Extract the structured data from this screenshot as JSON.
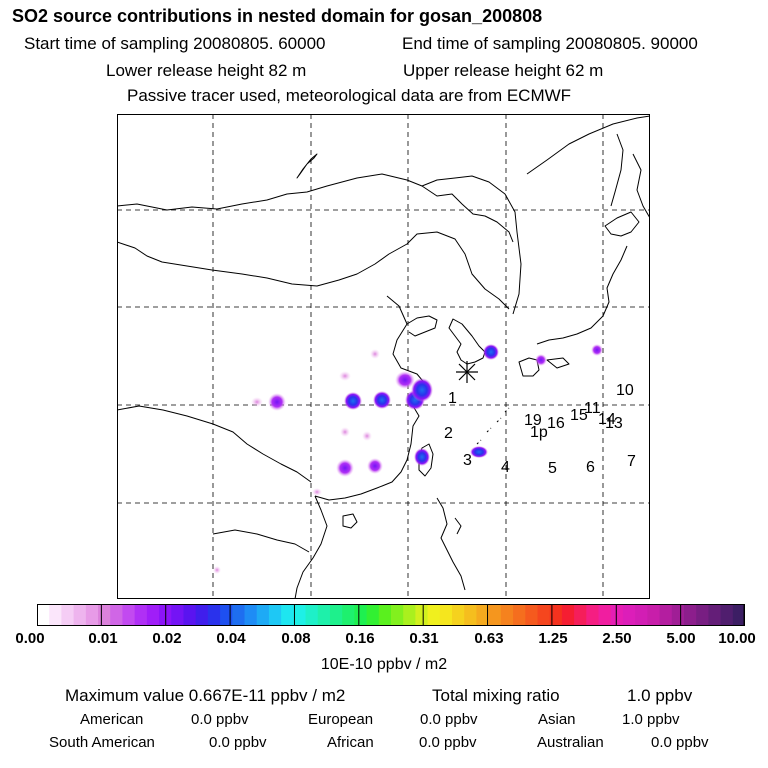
{
  "header": {
    "title": "SO2 source contributions in nested domain for gosan_200808",
    "start_time": "Start time of sampling 20080805. 60000",
    "end_time": "End time of sampling 20080805. 90000",
    "lower_release": "Lower release height   82 m",
    "upper_release": "Upper release height   62 m",
    "tracer_note": "Passive tracer used, meteorological data are from ECMWF"
  },
  "map": {
    "receptor_markers": [
      {
        "label": "1"
      },
      {
        "label": "2"
      },
      {
        "label": "3"
      },
      {
        "label": "4"
      },
      {
        "label": "5"
      },
      {
        "label": "6"
      },
      {
        "label": "7"
      },
      {
        "label": "10"
      },
      {
        "label": "11"
      },
      {
        "label": "13"
      },
      {
        "label": "14"
      },
      {
        "label": "15"
      },
      {
        "label": "16"
      },
      {
        "label": "19"
      },
      {
        "label": "1p"
      }
    ],
    "colors": {
      "coast": "#000000",
      "grid": "#000000"
    }
  },
  "colorbar": {
    "colors": [
      "#ffffff",
      "#fbe6fb",
      "#f5cdf5",
      "#eeb4ee",
      "#e79be7",
      "#dc82dc",
      "#d066e6",
      "#c24af0",
      "#b030f5",
      "#a01ef8",
      "#8c14f8",
      "#7414f5",
      "#5a14f0",
      "#401eec",
      "#2a32ec",
      "#1e50f0",
      "#1e6ef0",
      "#1e8cf5",
      "#1eaaf5",
      "#1ec8f5",
      "#1ee6f0",
      "#1ef0e6",
      "#1ef0c8",
      "#1ef0aa",
      "#1ef08c",
      "#1ef06e",
      "#1ef050",
      "#32f032",
      "#5af01e",
      "#82f01e",
      "#aaf01e",
      "#d2f01e",
      "#f0f01e",
      "#f5e61e",
      "#f5d21e",
      "#f5be1e",
      "#f5aa1e",
      "#f5961e",
      "#f5821e",
      "#f56e1e",
      "#f55a1e",
      "#f5461e",
      "#f5321e",
      "#f51e32",
      "#f51e5a",
      "#f51e82",
      "#f01ea0",
      "#e61eb4",
      "#dc1eb9",
      "#d21eb4",
      "#c81eaa",
      "#b41ea0",
      "#a01e96",
      "#8c1e8c",
      "#781e82",
      "#641e78",
      "#501e6e",
      "#3c1e64"
    ],
    "tick_labels": [
      "0.00",
      "0.01",
      "0.02",
      "0.04",
      "0.08",
      "0.16",
      "0.31",
      "0.63",
      "1.25",
      "2.50",
      "5.00",
      "10.00"
    ],
    "unit": "10E-10 ppbv / m2"
  },
  "footer": {
    "max_value": "Maximum value  0.667E-11 ppbv / m2",
    "total_mixing": "Total mixing ratio",
    "total_value": "1.0 ppbv",
    "regions": [
      {
        "name": "American",
        "value": "0.0 ppbv"
      },
      {
        "name": "European",
        "value": "0.0 ppbv"
      },
      {
        "name": "Asian",
        "value": "1.0 ppbv"
      },
      {
        "name": "South American",
        "value": "0.0 ppbv"
      },
      {
        "name": "African",
        "value": "0.0 ppbv"
      },
      {
        "name": "Australian",
        "value": "0.0 ppbv"
      }
    ]
  }
}
